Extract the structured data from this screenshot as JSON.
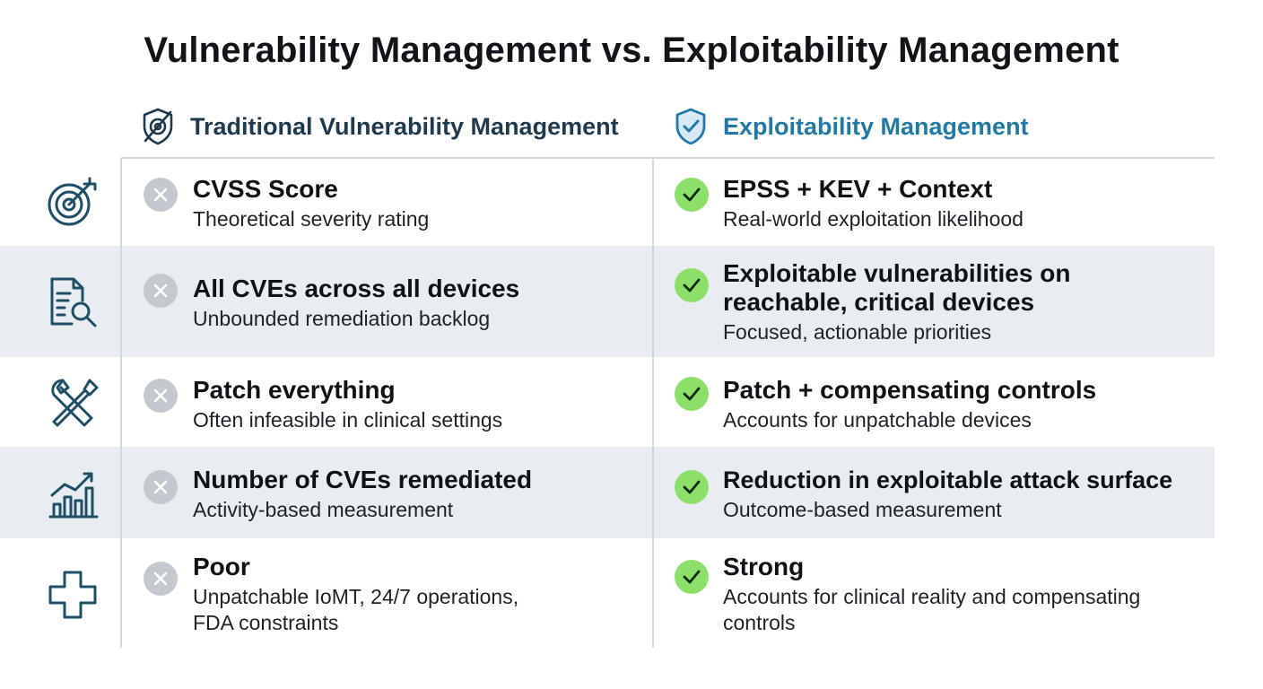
{
  "title": "Vulnerability Management vs. Exploitability Management",
  "columns": {
    "left": {
      "heading": "Traditional Vulnerability Management",
      "icon": "crossed-target-icon",
      "color": "#1f3a4d"
    },
    "right": {
      "heading": "Exploitability Management",
      "icon": "shield-check-icon",
      "color": "#2279a8"
    }
  },
  "rows": [
    {
      "icon": "target-icon",
      "left": {
        "title": "CVSS Score",
        "subtitle": "Theoretical severity rating"
      },
      "right": {
        "title": "EPSS + KEV + Context",
        "subtitle": "Real-world exploitation likelihood"
      }
    },
    {
      "icon": "document-search-icon",
      "left": {
        "title": "All CVEs across all devices",
        "subtitle": "Unbounded remediation backlog"
      },
      "right": {
        "title": "Exploitable vulnerabilities on reachable, critical devices",
        "subtitle": "Focused, actionable priorities"
      }
    },
    {
      "icon": "tools-icon",
      "left": {
        "title": "Patch everything",
        "subtitle": "Often infeasible in clinical settings"
      },
      "right": {
        "title": "Patch + compensating controls",
        "subtitle": "Accounts for unpatchable devices"
      }
    },
    {
      "icon": "growth-chart-icon",
      "left": {
        "title": "Number of CVEs remediated",
        "subtitle": "Activity-based measurement"
      },
      "right": {
        "title": "Reduction in exploitable attack surface",
        "subtitle": "Outcome-based measurement"
      }
    },
    {
      "icon": "medical-cross-icon",
      "left": {
        "title": "Poor",
        "subtitle": "Unpatchable IoMT, 24/7 operations, FDA constraints"
      },
      "right": {
        "title": "Strong",
        "subtitle": "Accounts for clinical reality and compensating controls"
      }
    }
  ],
  "colors": {
    "icon_stroke": "#1f4f66",
    "cross_mark": "#c4c9cf",
    "check_mark": "#8ce06a",
    "row_shade": "#e9ecf0"
  }
}
